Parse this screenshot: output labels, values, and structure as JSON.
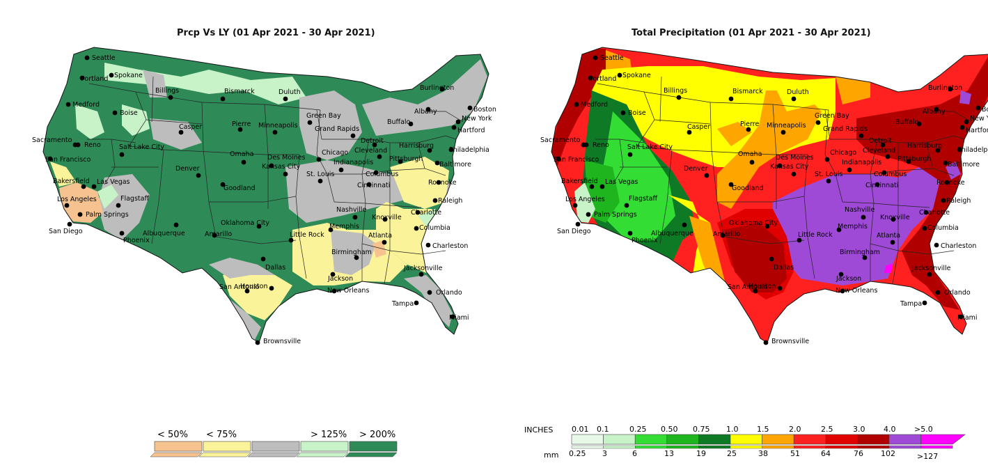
{
  "left_map": {
    "title": "Prcp Vs LY (01 Apr 2021 - 30 Apr 2021)",
    "legend": {
      "classes": [
        {
          "label": "< 50%",
          "color": "#f6c28f"
        },
        {
          "label": "< 75%",
          "color": "#fbf39a"
        },
        {
          "label": "",
          "color": "#bdbdbd"
        },
        {
          "label": "> 125%",
          "color": "#c8f2c8"
        },
        {
          "label": "> 200%",
          "color": "#2e8b57"
        }
      ]
    },
    "colors": {
      "above": "#2e8b57",
      "slightly_above": "#c8f2c8",
      "normal": "#bdbdbd",
      "below": "#fbf39a",
      "much_below": "#f6c28f"
    }
  },
  "right_map": {
    "title": "Total Precipitation (01 Apr 2021 - 30 Apr 2021)",
    "legend": {
      "inches_label": "INCHES",
      "mm_label": "mm",
      "inches": [
        "0.01",
        "0.1",
        "0.25",
        "0.50",
        "0.75",
        "1.0",
        "1.5",
        "2.0",
        "2.5",
        "3.0",
        "4.0",
        ">5.0"
      ],
      "mm": [
        "0.25",
        "3",
        "6",
        "13",
        "19",
        "25",
        "38",
        "51",
        "64",
        "76",
        "102",
        ">127"
      ],
      "colors": [
        "#e9f9e9",
        "#c8f2c8",
        "#33dd33",
        "#1fb51f",
        "#0f7a25",
        "#ffff00",
        "#ffa500",
        "#ff2020",
        "#e00000",
        "#b00000",
        "#9e4ad6",
        "#ff00ff"
      ]
    }
  },
  "cities": [
    {
      "name": "Seattle"
    },
    {
      "name": "Spokane"
    },
    {
      "name": "Portland"
    },
    {
      "name": "Medford"
    },
    {
      "name": "Boise"
    },
    {
      "name": "Billings"
    },
    {
      "name": "Bismarck"
    },
    {
      "name": "Duluth"
    },
    {
      "name": "Casper"
    },
    {
      "name": "Green Bay"
    },
    {
      "name": "Minneapolis"
    },
    {
      "name": "Pierre"
    },
    {
      "name": "Sacramento"
    },
    {
      "name": "Reno"
    },
    {
      "name": "San Francisco"
    },
    {
      "name": "Salt Lake City"
    },
    {
      "name": "Des Moines"
    },
    {
      "name": "Omaha"
    },
    {
      "name": "Chicago"
    },
    {
      "name": "Denver"
    },
    {
      "name": "Bakersfield"
    },
    {
      "name": "Las Vegas"
    },
    {
      "name": "Goodland"
    },
    {
      "name": "Kansas City"
    },
    {
      "name": "St. Louis"
    },
    {
      "name": "Indianapolis"
    },
    {
      "name": "Los Angeles"
    },
    {
      "name": "Flagstaff"
    },
    {
      "name": "Palm Springs"
    },
    {
      "name": "San Diego"
    },
    {
      "name": "Phoenix"
    },
    {
      "name": "Albuquerque"
    },
    {
      "name": "Oklahoma City"
    },
    {
      "name": "Amarillo"
    },
    {
      "name": "Little Rock"
    },
    {
      "name": "Memphis"
    },
    {
      "name": "Nashville"
    },
    {
      "name": "Dallas"
    },
    {
      "name": "Jackson"
    },
    {
      "name": "Birmingham"
    },
    {
      "name": "Atlanta"
    },
    {
      "name": "San Antonio"
    },
    {
      "name": "Houston"
    },
    {
      "name": "New Orleans"
    },
    {
      "name": "Brownsville"
    },
    {
      "name": "Jacksonville"
    },
    {
      "name": "Orlando"
    },
    {
      "name": "Tampa"
    },
    {
      "name": "Miami"
    },
    {
      "name": "Charleston"
    },
    {
      "name": "Columbia"
    },
    {
      "name": "Charlotte"
    },
    {
      "name": "Knoxville"
    },
    {
      "name": "Raleigh"
    },
    {
      "name": "Roanoke"
    },
    {
      "name": "Cincinnati"
    },
    {
      "name": "Columbus"
    },
    {
      "name": "Pittsburgh"
    },
    {
      "name": "Cleveland"
    },
    {
      "name": "Detroit"
    },
    {
      "name": "Grand Rapids"
    },
    {
      "name": "Buffalo"
    },
    {
      "name": "Harrisburg"
    },
    {
      "name": "Baltimore"
    },
    {
      "name": "Philadelphia"
    },
    {
      "name": "New York"
    },
    {
      "name": "Hartford"
    },
    {
      "name": "Boston"
    },
    {
      "name": "Albany"
    },
    {
      "name": "Burlington"
    }
  ]
}
